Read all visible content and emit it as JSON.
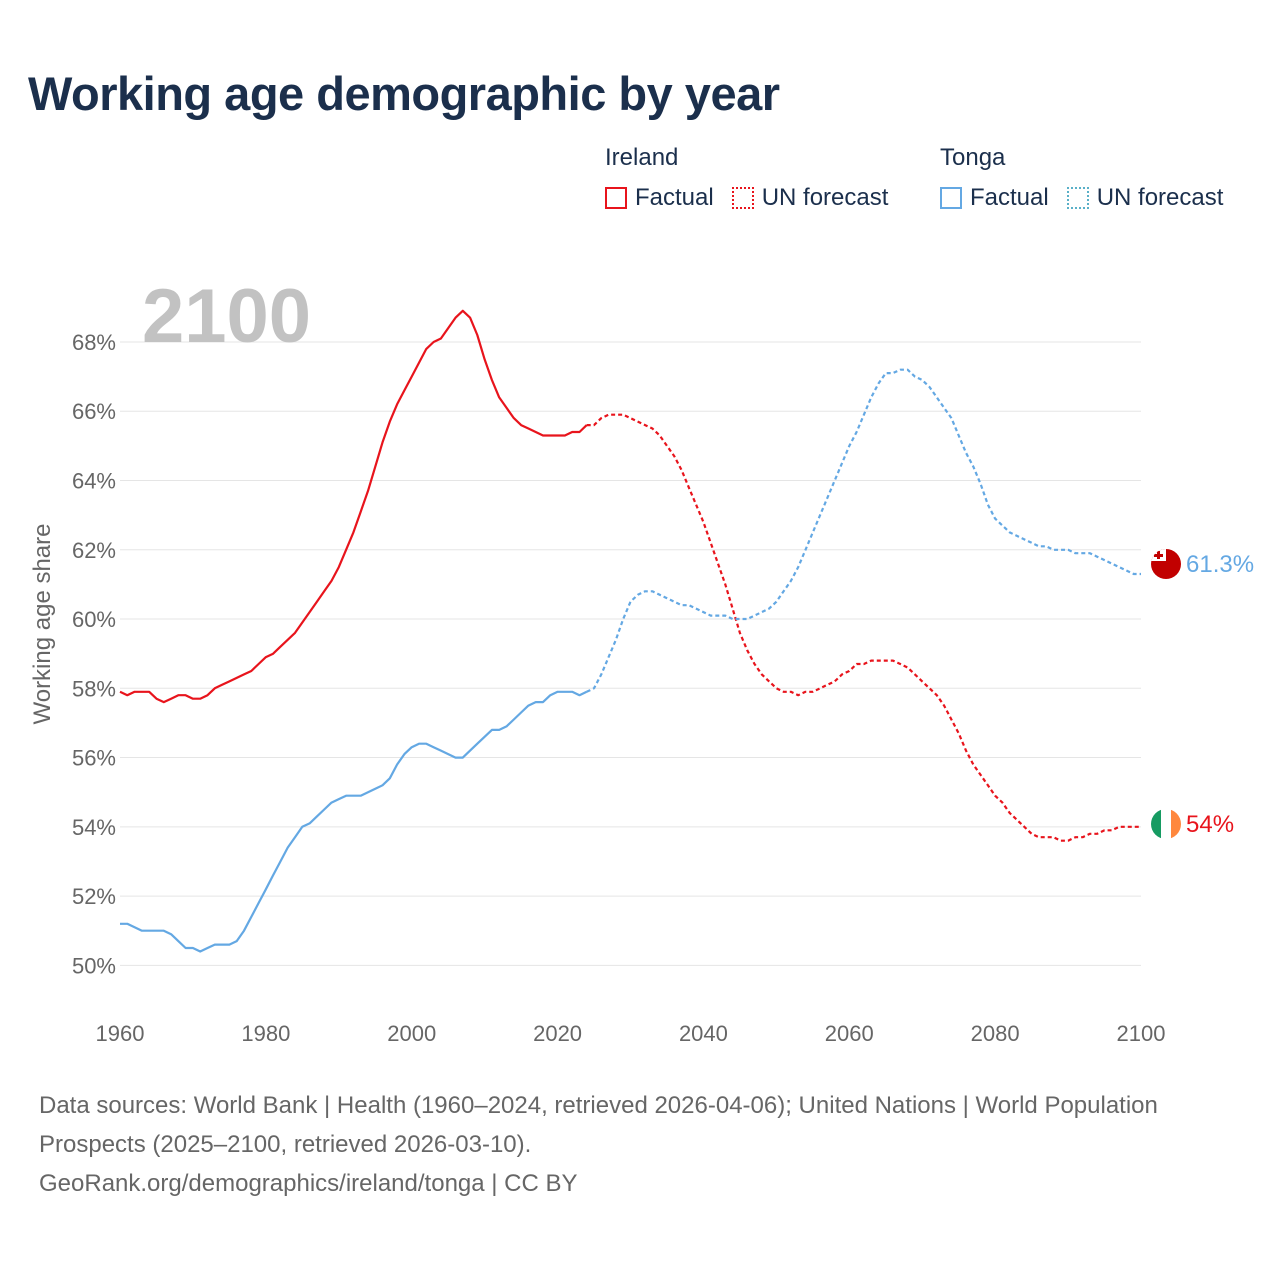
{
  "title": "Working age demographic by year",
  "colors": {
    "title": "#1b2f4c",
    "ireland": "#e8141c",
    "tonga": "#64a8e3",
    "tonga_forecast": "#5ab0c8",
    "grid": "#e5e5e5",
    "axis_text": "#666666",
    "year_label": "#c2c2c2"
  },
  "legend": {
    "groups": [
      {
        "title": "Ireland",
        "items": [
          "Factual",
          "UN forecast"
        ]
      },
      {
        "title": "Tonga",
        "items": [
          "Factual",
          "UN forecast"
        ]
      }
    ]
  },
  "year_label": "2100",
  "footer": {
    "lines": [
      "Data sources: World Bank | Health (1960–2024, retrieved 2026-04-06); United Nations | World Population Prospects (2025–2100, retrieved 2026-03-10).",
      "GeoRank.org/demographics/ireland/tonga | CC BY"
    ]
  },
  "chart_data": {
    "type": "line",
    "title": "Working age demographic by year",
    "xlabel": "",
    "ylabel": "Working age share",
    "xlim": [
      1960,
      2100
    ],
    "ylim": [
      49,
      69.5
    ],
    "x_ticks": [
      1960,
      1980,
      2000,
      2020,
      2040,
      2060,
      2080,
      2100
    ],
    "y_ticks": [
      50,
      52,
      54,
      56,
      58,
      60,
      62,
      64,
      66,
      68
    ],
    "y_tick_labels": [
      "50%",
      "52%",
      "54%",
      "56%",
      "58%",
      "60%",
      "62%",
      "64%",
      "66%",
      "68%"
    ],
    "grid": true,
    "factual_range": [
      1960,
      2024
    ],
    "forecast_range": [
      2025,
      2100
    ],
    "series": [
      {
        "name": "Ireland",
        "end_label": "54%",
        "flag_icon": "ireland-flag-icon",
        "points": [
          [
            1960,
            57.9
          ],
          [
            1961,
            57.8
          ],
          [
            1962,
            57.9
          ],
          [
            1963,
            57.9
          ],
          [
            1964,
            57.9
          ],
          [
            1965,
            57.7
          ],
          [
            1966,
            57.6
          ],
          [
            1967,
            57.7
          ],
          [
            1968,
            57.8
          ],
          [
            1969,
            57.8
          ],
          [
            1970,
            57.7
          ],
          [
            1971,
            57.7
          ],
          [
            1972,
            57.8
          ],
          [
            1973,
            58.0
          ],
          [
            1974,
            58.1
          ],
          [
            1975,
            58.2
          ],
          [
            1976,
            58.3
          ],
          [
            1977,
            58.4
          ],
          [
            1978,
            58.5
          ],
          [
            1979,
            58.7
          ],
          [
            1980,
            58.9
          ],
          [
            1981,
            59.0
          ],
          [
            1982,
            59.2
          ],
          [
            1983,
            59.4
          ],
          [
            1984,
            59.6
          ],
          [
            1985,
            59.9
          ],
          [
            1986,
            60.2
          ],
          [
            1987,
            60.5
          ],
          [
            1988,
            60.8
          ],
          [
            1989,
            61.1
          ],
          [
            1990,
            61.5
          ],
          [
            1991,
            62.0
          ],
          [
            1992,
            62.5
          ],
          [
            1993,
            63.1
          ],
          [
            1994,
            63.7
          ],
          [
            1995,
            64.4
          ],
          [
            1996,
            65.1
          ],
          [
            1997,
            65.7
          ],
          [
            1998,
            66.2
          ],
          [
            1999,
            66.6
          ],
          [
            2000,
            67.0
          ],
          [
            2001,
            67.4
          ],
          [
            2002,
            67.8
          ],
          [
            2003,
            68.0
          ],
          [
            2004,
            68.1
          ],
          [
            2005,
            68.4
          ],
          [
            2006,
            68.7
          ],
          [
            2007,
            68.9
          ],
          [
            2008,
            68.7
          ],
          [
            2009,
            68.2
          ],
          [
            2010,
            67.5
          ],
          [
            2011,
            66.9
          ],
          [
            2012,
            66.4
          ],
          [
            2013,
            66.1
          ],
          [
            2014,
            65.8
          ],
          [
            2015,
            65.6
          ],
          [
            2016,
            65.5
          ],
          [
            2017,
            65.4
          ],
          [
            2018,
            65.3
          ],
          [
            2019,
            65.3
          ],
          [
            2020,
            65.3
          ],
          [
            2021,
            65.3
          ],
          [
            2022,
            65.4
          ],
          [
            2023,
            65.4
          ],
          [
            2024,
            65.6
          ],
          [
            2025,
            65.6
          ],
          [
            2026,
            65.8
          ],
          [
            2027,
            65.9
          ],
          [
            2028,
            65.9
          ],
          [
            2029,
            65.9
          ],
          [
            2030,
            65.8
          ],
          [
            2031,
            65.7
          ],
          [
            2032,
            65.6
          ],
          [
            2033,
            65.5
          ],
          [
            2034,
            65.3
          ],
          [
            2035,
            65.0
          ],
          [
            2036,
            64.7
          ],
          [
            2037,
            64.3
          ],
          [
            2038,
            63.8
          ],
          [
            2039,
            63.3
          ],
          [
            2040,
            62.8
          ],
          [
            2041,
            62.2
          ],
          [
            2042,
            61.6
          ],
          [
            2043,
            61.0
          ],
          [
            2044,
            60.3
          ],
          [
            2045,
            59.6
          ],
          [
            2046,
            59.1
          ],
          [
            2047,
            58.7
          ],
          [
            2048,
            58.4
          ],
          [
            2049,
            58.2
          ],
          [
            2050,
            58.0
          ],
          [
            2051,
            57.9
          ],
          [
            2052,
            57.9
          ],
          [
            2053,
            57.8
          ],
          [
            2054,
            57.9
          ],
          [
            2055,
            57.9
          ],
          [
            2056,
            58.0
          ],
          [
            2057,
            58.1
          ],
          [
            2058,
            58.2
          ],
          [
            2059,
            58.4
          ],
          [
            2060,
            58.5
          ],
          [
            2061,
            58.7
          ],
          [
            2062,
            58.7
          ],
          [
            2063,
            58.8
          ],
          [
            2064,
            58.8
          ],
          [
            2065,
            58.8
          ],
          [
            2066,
            58.8
          ],
          [
            2067,
            58.7
          ],
          [
            2068,
            58.6
          ],
          [
            2069,
            58.4
          ],
          [
            2070,
            58.2
          ],
          [
            2071,
            58.0
          ],
          [
            2072,
            57.8
          ],
          [
            2073,
            57.5
          ],
          [
            2074,
            57.1
          ],
          [
            2075,
            56.7
          ],
          [
            2076,
            56.2
          ],
          [
            2077,
            55.8
          ],
          [
            2078,
            55.5
          ],
          [
            2079,
            55.2
          ],
          [
            2080,
            54.9
          ],
          [
            2081,
            54.7
          ],
          [
            2082,
            54.4
          ],
          [
            2083,
            54.2
          ],
          [
            2084,
            54.0
          ],
          [
            2085,
            53.8
          ],
          [
            2086,
            53.7
          ],
          [
            2087,
            53.7
          ],
          [
            2088,
            53.7
          ],
          [
            2089,
            53.6
          ],
          [
            2090,
            53.6
          ],
          [
            2091,
            53.7
          ],
          [
            2092,
            53.7
          ],
          [
            2093,
            53.8
          ],
          [
            2094,
            53.8
          ],
          [
            2095,
            53.9
          ],
          [
            2096,
            53.9
          ],
          [
            2097,
            54.0
          ],
          [
            2098,
            54.0
          ],
          [
            2099,
            54.0
          ],
          [
            2100,
            54.0
          ]
        ]
      },
      {
        "name": "Tonga",
        "end_label": "61.3%",
        "flag_icon": "tonga-flag-icon",
        "points": [
          [
            1960,
            51.2
          ],
          [
            1961,
            51.2
          ],
          [
            1962,
            51.1
          ],
          [
            1963,
            51.0
          ],
          [
            1964,
            51.0
          ],
          [
            1965,
            51.0
          ],
          [
            1966,
            51.0
          ],
          [
            1967,
            50.9
          ],
          [
            1968,
            50.7
          ],
          [
            1969,
            50.5
          ],
          [
            1970,
            50.5
          ],
          [
            1971,
            50.4
          ],
          [
            1972,
            50.5
          ],
          [
            1973,
            50.6
          ],
          [
            1974,
            50.6
          ],
          [
            1975,
            50.6
          ],
          [
            1976,
            50.7
          ],
          [
            1977,
            51.0
          ],
          [
            1978,
            51.4
          ],
          [
            1979,
            51.8
          ],
          [
            1980,
            52.2
          ],
          [
            1981,
            52.6
          ],
          [
            1982,
            53.0
          ],
          [
            1983,
            53.4
          ],
          [
            1984,
            53.7
          ],
          [
            1985,
            54.0
          ],
          [
            1986,
            54.1
          ],
          [
            1987,
            54.3
          ],
          [
            1988,
            54.5
          ],
          [
            1989,
            54.7
          ],
          [
            1990,
            54.8
          ],
          [
            1991,
            54.9
          ],
          [
            1992,
            54.9
          ],
          [
            1993,
            54.9
          ],
          [
            1994,
            55.0
          ],
          [
            1995,
            55.1
          ],
          [
            1996,
            55.2
          ],
          [
            1997,
            55.4
          ],
          [
            1998,
            55.8
          ],
          [
            1999,
            56.1
          ],
          [
            2000,
            56.3
          ],
          [
            2001,
            56.4
          ],
          [
            2002,
            56.4
          ],
          [
            2003,
            56.3
          ],
          [
            2004,
            56.2
          ],
          [
            2005,
            56.1
          ],
          [
            2006,
            56.0
          ],
          [
            2007,
            56.0
          ],
          [
            2008,
            56.2
          ],
          [
            2009,
            56.4
          ],
          [
            2010,
            56.6
          ],
          [
            2011,
            56.8
          ],
          [
            2012,
            56.8
          ],
          [
            2013,
            56.9
          ],
          [
            2014,
            57.1
          ],
          [
            2015,
            57.3
          ],
          [
            2016,
            57.5
          ],
          [
            2017,
            57.6
          ],
          [
            2018,
            57.6
          ],
          [
            2019,
            57.8
          ],
          [
            2020,
            57.9
          ],
          [
            2021,
            57.9
          ],
          [
            2022,
            57.9
          ],
          [
            2023,
            57.8
          ],
          [
            2024,
            57.9
          ],
          [
            2025,
            58.0
          ],
          [
            2026,
            58.4
          ],
          [
            2027,
            58.9
          ],
          [
            2028,
            59.4
          ],
          [
            2029,
            60.0
          ],
          [
            2030,
            60.5
          ],
          [
            2031,
            60.7
          ],
          [
            2032,
            60.8
          ],
          [
            2033,
            60.8
          ],
          [
            2034,
            60.7
          ],
          [
            2035,
            60.6
          ],
          [
            2036,
            60.5
          ],
          [
            2037,
            60.4
          ],
          [
            2038,
            60.4
          ],
          [
            2039,
            60.3
          ],
          [
            2040,
            60.2
          ],
          [
            2041,
            60.1
          ],
          [
            2042,
            60.1
          ],
          [
            2043,
            60.1
          ],
          [
            2044,
            60.0
          ],
          [
            2045,
            60.0
          ],
          [
            2046,
            60.0
          ],
          [
            2047,
            60.1
          ],
          [
            2048,
            60.2
          ],
          [
            2049,
            60.3
          ],
          [
            2050,
            60.5
          ],
          [
            2051,
            60.8
          ],
          [
            2052,
            61.1
          ],
          [
            2053,
            61.5
          ],
          [
            2054,
            62.0
          ],
          [
            2055,
            62.5
          ],
          [
            2056,
            63.0
          ],
          [
            2057,
            63.5
          ],
          [
            2058,
            64.0
          ],
          [
            2059,
            64.5
          ],
          [
            2060,
            65.0
          ],
          [
            2061,
            65.4
          ],
          [
            2062,
            65.9
          ],
          [
            2063,
            66.4
          ],
          [
            2064,
            66.8
          ],
          [
            2065,
            67.1
          ],
          [
            2066,
            67.1
          ],
          [
            2067,
            67.2
          ],
          [
            2068,
            67.2
          ],
          [
            2069,
            67.0
          ],
          [
            2070,
            66.9
          ],
          [
            2071,
            66.7
          ],
          [
            2072,
            66.4
          ],
          [
            2073,
            66.1
          ],
          [
            2074,
            65.8
          ],
          [
            2075,
            65.3
          ],
          [
            2076,
            64.8
          ],
          [
            2077,
            64.4
          ],
          [
            2078,
            63.9
          ],
          [
            2079,
            63.3
          ],
          [
            2080,
            62.9
          ],
          [
            2081,
            62.7
          ],
          [
            2082,
            62.5
          ],
          [
            2083,
            62.4
          ],
          [
            2084,
            62.3
          ],
          [
            2085,
            62.2
          ],
          [
            2086,
            62.1
          ],
          [
            2087,
            62.1
          ],
          [
            2088,
            62.0
          ],
          [
            2089,
            62.0
          ],
          [
            2090,
            62.0
          ],
          [
            2091,
            61.9
          ],
          [
            2092,
            61.9
          ],
          [
            2093,
            61.9
          ],
          [
            2094,
            61.8
          ],
          [
            2095,
            61.7
          ],
          [
            2096,
            61.6
          ],
          [
            2097,
            61.5
          ],
          [
            2098,
            61.4
          ],
          [
            2099,
            61.3
          ],
          [
            2100,
            61.3
          ]
        ]
      }
    ]
  }
}
